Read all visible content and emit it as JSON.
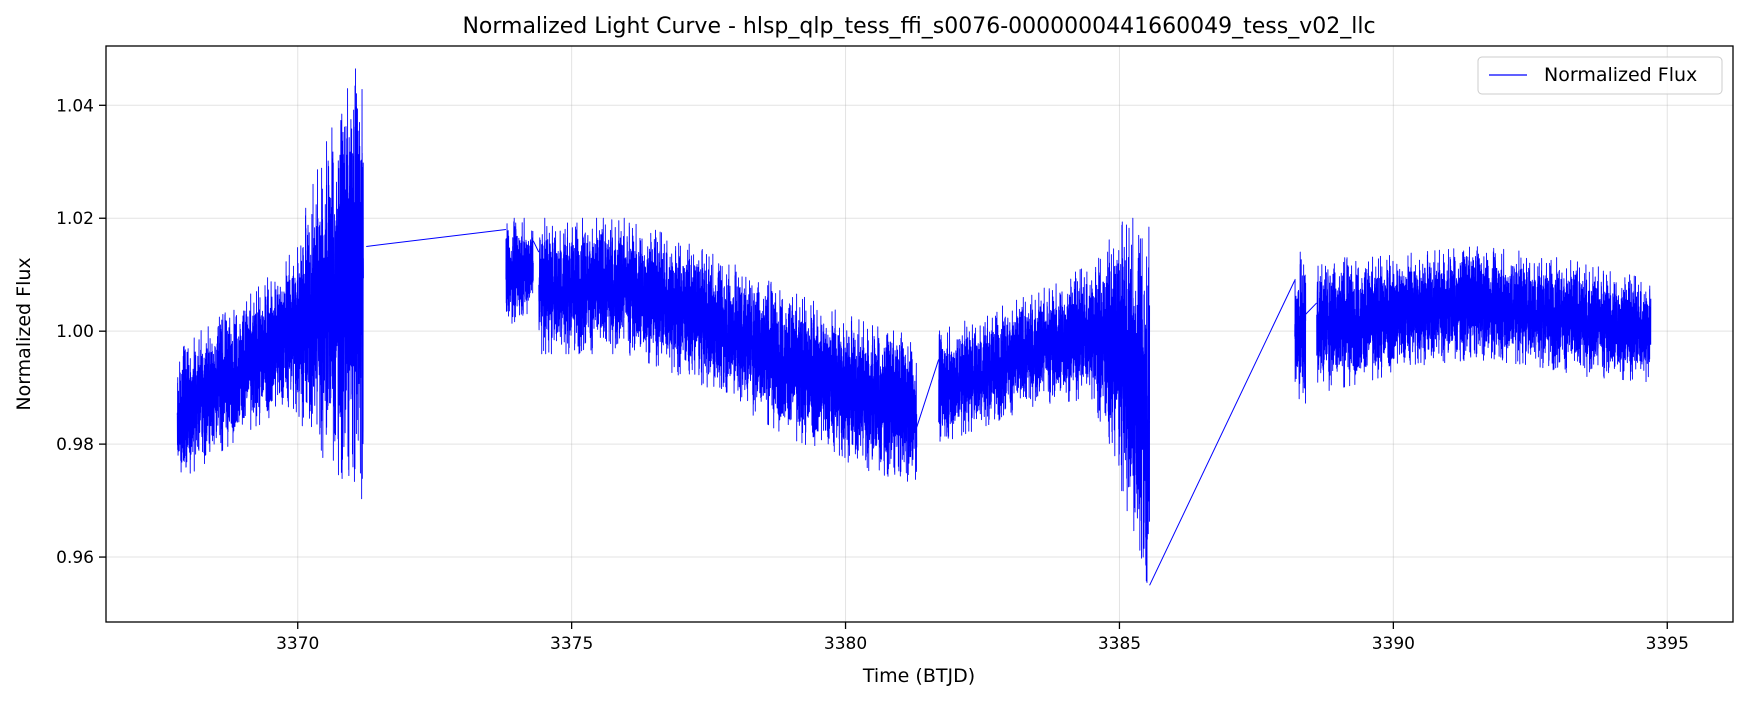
{
  "chart_data": {
    "type": "line",
    "title": "Normalized Light Curve - hlsp_qlp_tess_ffi_s0076-0000000441660049_tess_v02_llc",
    "xlabel": "Time (BTJD)",
    "ylabel": "Normalized Flux",
    "xlim": [
      3366.5,
      3396.2
    ],
    "ylim": [
      0.9485,
      1.0505
    ],
    "x_ticks": [
      3370,
      3375,
      3380,
      3385,
      3390,
      3395
    ],
    "y_ticks": [
      0.96,
      0.98,
      1.0,
      1.02,
      1.04
    ],
    "x_tick_labels": [
      "3370",
      "3375",
      "3380",
      "3385",
      "3390",
      "3395"
    ],
    "y_tick_labels": [
      "0.96",
      "0.98",
      "1.00",
      "1.02",
      "1.04"
    ],
    "grid": true,
    "legend_position": "top-right",
    "series": [
      {
        "name": "Normalized Flux",
        "color": "#0000ff",
        "segments": [
          {
            "x": [
              3367.8,
              3368.5,
              3369.2,
              3369.9,
              3370.5,
              3371.2
            ],
            "center": [
              0.985,
              0.99,
              0.995,
              1.0,
              1.005,
              1.01
            ],
            "amplitude": [
              0.012,
              0.012,
              0.012,
              0.014,
              0.028,
              0.04
            ]
          },
          {
            "x": [
              3373.8,
              3374.3
            ],
            "center": [
              1.01,
              1.012
            ],
            "amplitude": [
              0.01,
              0.008
            ]
          },
          {
            "x": [
              3374.4,
              3376.0,
              3377.5,
              3379.0,
              3380.5,
              3381.3
            ],
            "center": [
              1.008,
              1.008,
              1.002,
              0.994,
              0.988,
              0.986
            ],
            "amplitude": [
              0.012,
              0.012,
              0.012,
              0.013,
              0.013,
              0.013
            ]
          },
          {
            "x": [
              3381.7,
              3382.5,
              3383.5,
              3384.5,
              3385.1,
              3385.55
            ],
            "center": [
              0.99,
              0.993,
              0.997,
              1.0,
              0.995,
              0.985
            ],
            "amplitude": [
              0.01,
              0.01,
              0.01,
              0.012,
              0.025,
              0.035
            ]
          },
          {
            "x": [
              3388.2,
              3388.4
            ],
            "center": [
              1.0,
              1.0
            ],
            "amplitude": [
              0.014,
              0.014
            ]
          },
          {
            "x": [
              3388.6,
              3389.5,
              3390.5,
              3391.5,
              3392.5,
              3393.5,
              3394.7
            ],
            "center": [
              1.001,
              1.002,
              1.004,
              1.005,
              1.004,
              1.002,
              1.0
            ],
            "amplitude": [
              0.012,
              0.011,
              0.01,
              0.01,
              0.01,
              0.01,
              0.009
            ]
          }
        ],
        "gap_connectors": [
          {
            "x": [
              3371.25,
              3373.8
            ],
            "y": [
              1.015,
              1.018
            ]
          },
          {
            "x": [
              3374.3,
              3374.4
            ],
            "y": [
              1.016,
              1.014
            ]
          },
          {
            "x": [
              3381.3,
              3381.7
            ],
            "y": [
              0.983,
              0.995
            ]
          },
          {
            "x": [
              3385.55,
              3388.2
            ],
            "y": [
              0.955,
              1.009
            ]
          },
          {
            "x": [
              3388.4,
              3388.6
            ],
            "y": [
              1.003,
              1.005
            ]
          }
        ]
      }
    ]
  }
}
